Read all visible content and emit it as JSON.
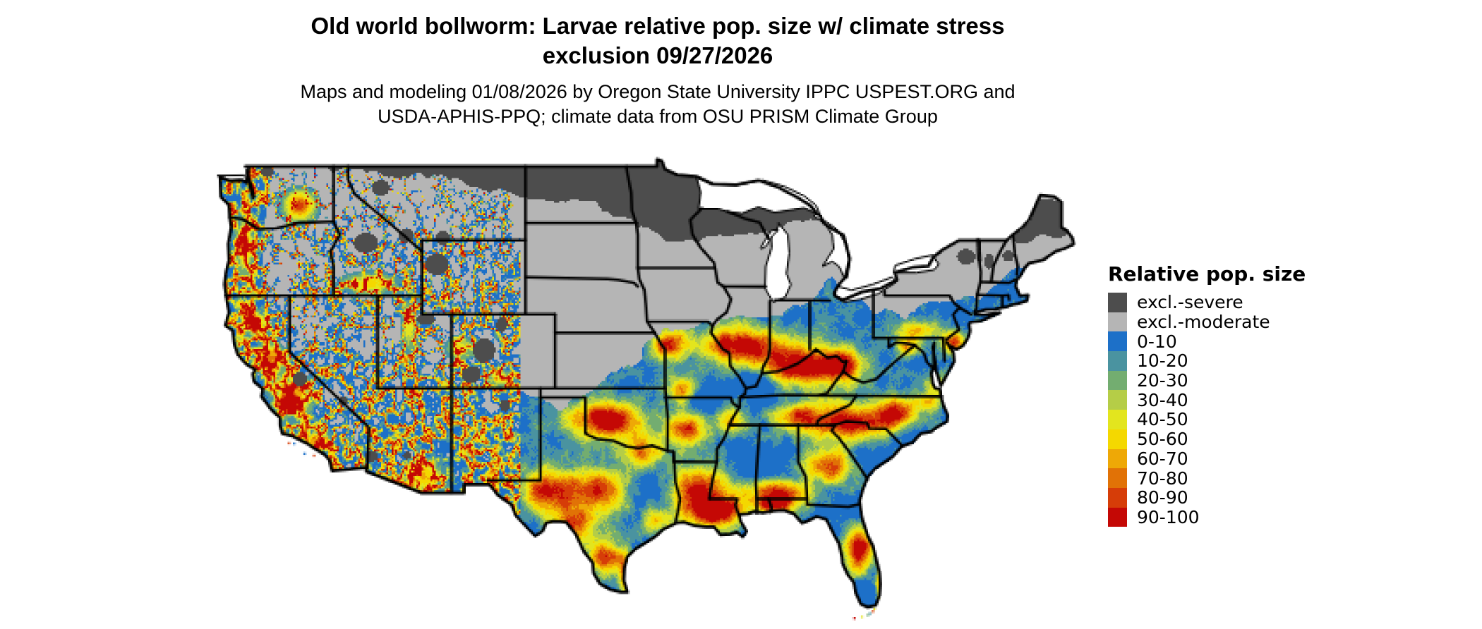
{
  "title": {
    "line1": "Old world bollworm: Larvae relative pop. size w/ climate stress",
    "line2": "exclusion 09/27/2026"
  },
  "subtitle": {
    "line1": "Maps and modeling 01/08/2026 by Oregon State University IPPC USPEST.ORG and",
    "line2": "USDA-APHIS-PPQ; climate data from OSU PRISM Climate Group"
  },
  "legend": {
    "title": "Relative pop. size",
    "items": [
      {
        "label": "excl.-severe",
        "color": "#4d4d4d"
      },
      {
        "label": "excl.-moderate",
        "color": "#b5b5b5"
      },
      {
        "label": "0-10",
        "color": "#1d70c8"
      },
      {
        "label": "10-20",
        "color": "#4a93a0"
      },
      {
        "label": "20-30",
        "color": "#73ad70"
      },
      {
        "label": "30-40",
        "color": "#b5cd47"
      },
      {
        "label": "40-50",
        "color": "#e3e51e"
      },
      {
        "label": "50-60",
        "color": "#f4d800"
      },
      {
        "label": "60-70",
        "color": "#eea806"
      },
      {
        "label": "70-80",
        "color": "#e17206"
      },
      {
        "label": "80-90",
        "color": "#d63d08"
      },
      {
        "label": "90-100",
        "color": "#c40805"
      }
    ]
  },
  "map": {
    "region": "Contiguous United States",
    "style": "pixel raster choropleth with black state borders",
    "background_color": "#ffffff",
    "water_color": "#ffffff",
    "border_color": "#000000"
  }
}
